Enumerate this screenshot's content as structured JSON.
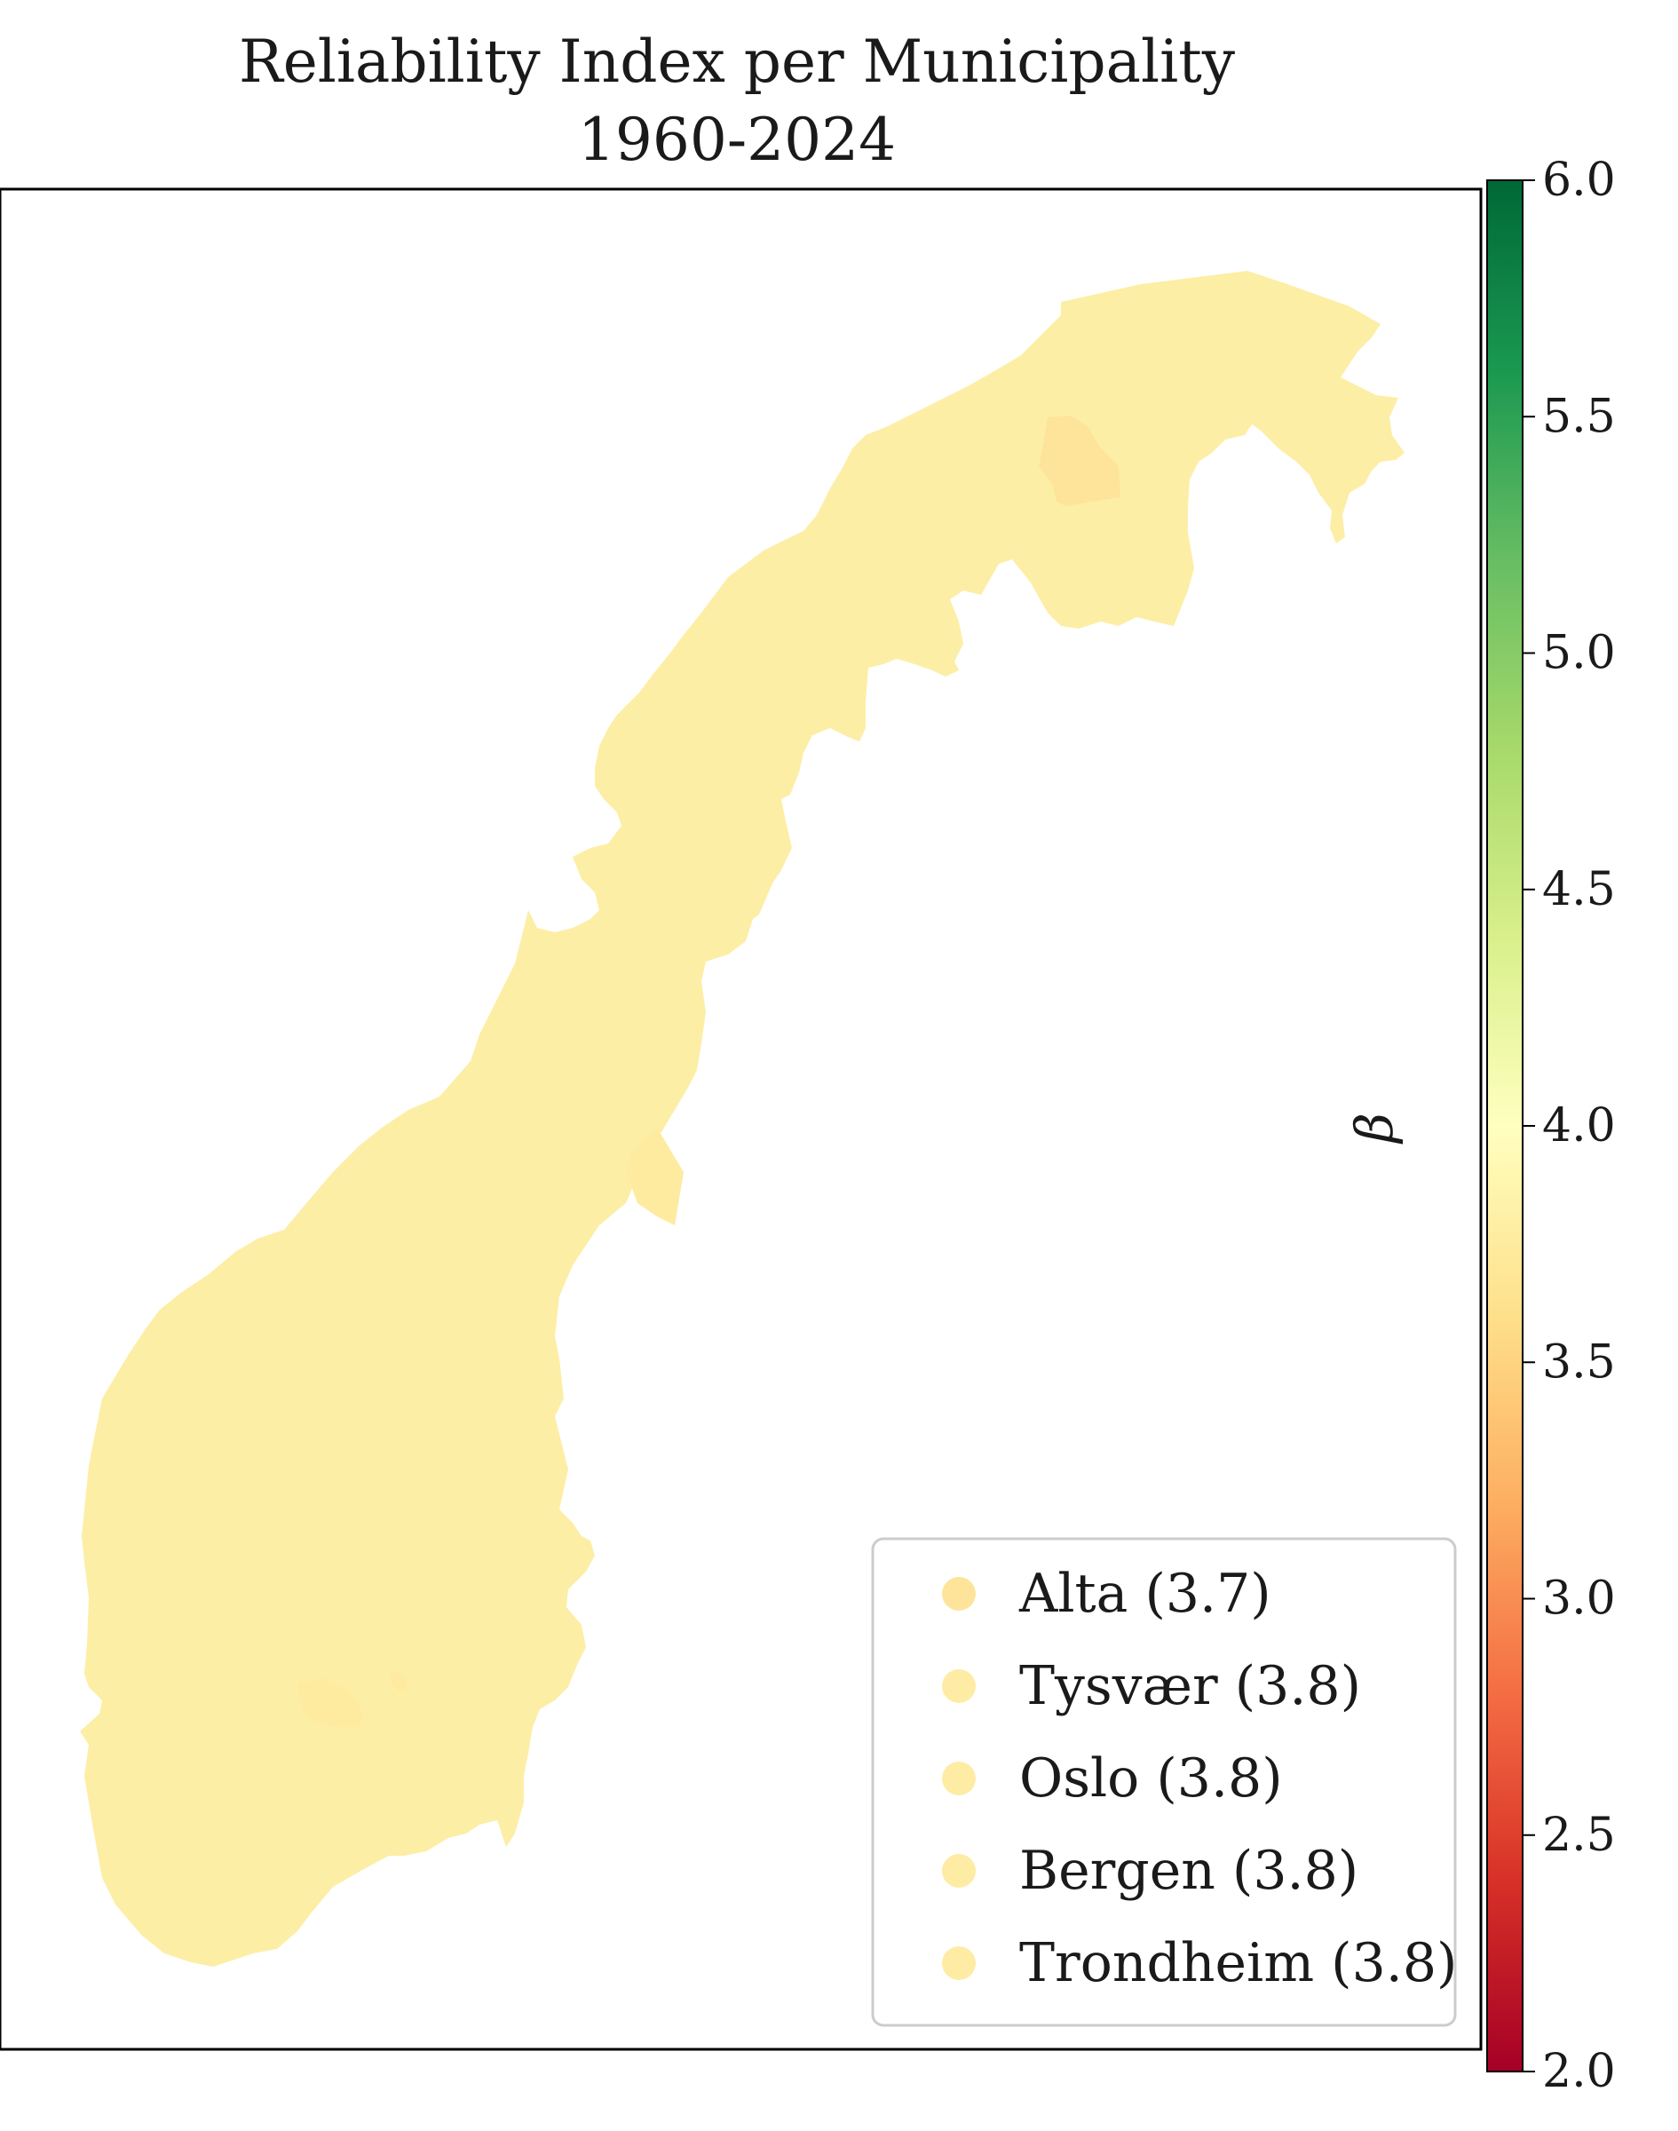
{
  "title": {
    "line1": "Reliability Index per Municipality",
    "line2": "1960-2024"
  },
  "colorbar": {
    "label": "β",
    "min": 2.0,
    "max": 6.0,
    "colormap": "RdYlGn",
    "ticks": [
      "2.0",
      "2.5",
      "3.0",
      "3.5",
      "4.0",
      "4.5",
      "5.0",
      "5.5",
      "6.0"
    ],
    "stops": [
      {
        "offset": 0.0,
        "color": "#a50026"
      },
      {
        "offset": 0.1,
        "color": "#d73027"
      },
      {
        "offset": 0.2,
        "color": "#f46d43"
      },
      {
        "offset": 0.3,
        "color": "#fdae61"
      },
      {
        "offset": 0.4,
        "color": "#fee08b"
      },
      {
        "offset": 0.5,
        "color": "#ffffbf"
      },
      {
        "offset": 0.6,
        "color": "#d9ef8b"
      },
      {
        "offset": 0.7,
        "color": "#a6d96a"
      },
      {
        "offset": 0.8,
        "color": "#66bd63"
      },
      {
        "offset": 0.9,
        "color": "#1a9850"
      },
      {
        "offset": 1.0,
        "color": "#006837"
      }
    ]
  },
  "map": {
    "region": "Norway",
    "base_color": "#fdeea6",
    "highlight_color": "#fde49a"
  },
  "legend": {
    "location": "lower right",
    "items": [
      {
        "label": "Alta (3.7)",
        "color": "#fde49a"
      },
      {
        "label": "Tysvær (3.8)",
        "color": "#feeca4"
      },
      {
        "label": "Oslo (3.8)",
        "color": "#feeca4"
      },
      {
        "label": "Bergen (3.8)",
        "color": "#feeca4"
      },
      {
        "label": "Trondheim (3.8)",
        "color": "#feeca4"
      }
    ]
  }
}
